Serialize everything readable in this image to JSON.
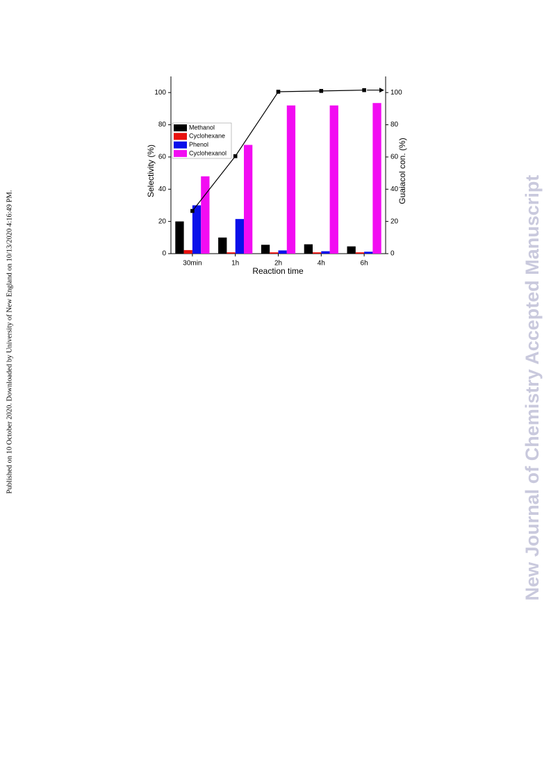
{
  "side_note": "Published on 10 October 2020. Downloaded by University of New England on 10/13/2020 4:16:49 PM.",
  "watermark": "New Journal of Chemistry Accepted Manuscript",
  "chart_data": {
    "type": "bar",
    "xlabel": "Reaction time",
    "ylabel": "Selectivity (%)",
    "y2label": "Guaiacol con. (%)",
    "categories": [
      "30min",
      "1h",
      "2h",
      "4h",
      "6h"
    ],
    "series": [
      {
        "name": "Methanol",
        "color": "#000000",
        "values": [
          20,
          10,
          5.5,
          5.8,
          4.5
        ]
      },
      {
        "name": "Cyclohexane",
        "color": "#e8110e",
        "values": [
          2.2,
          0.8,
          0.8,
          0.8,
          0.8
        ]
      },
      {
        "name": "Phenol",
        "color": "#0a10ea",
        "values": [
          30,
          21.5,
          2,
          1.5,
          1.2
        ]
      },
      {
        "name": "Cyclohexanol",
        "color": "#f20cf2",
        "values": [
          48,
          67.5,
          92,
          92,
          93.5
        ]
      },
      {
        "type": "line",
        "axis": "y2",
        "color": "#000000",
        "values": [
          26.5,
          60.5,
          100.5,
          101,
          101.5
        ]
      }
    ],
    "ylim": [
      0,
      110
    ],
    "yticks": [
      0,
      20,
      40,
      60,
      80,
      100
    ],
    "y2lim": [
      0,
      110
    ],
    "y2ticks": [
      0,
      20,
      40,
      60,
      80,
      100
    ]
  }
}
